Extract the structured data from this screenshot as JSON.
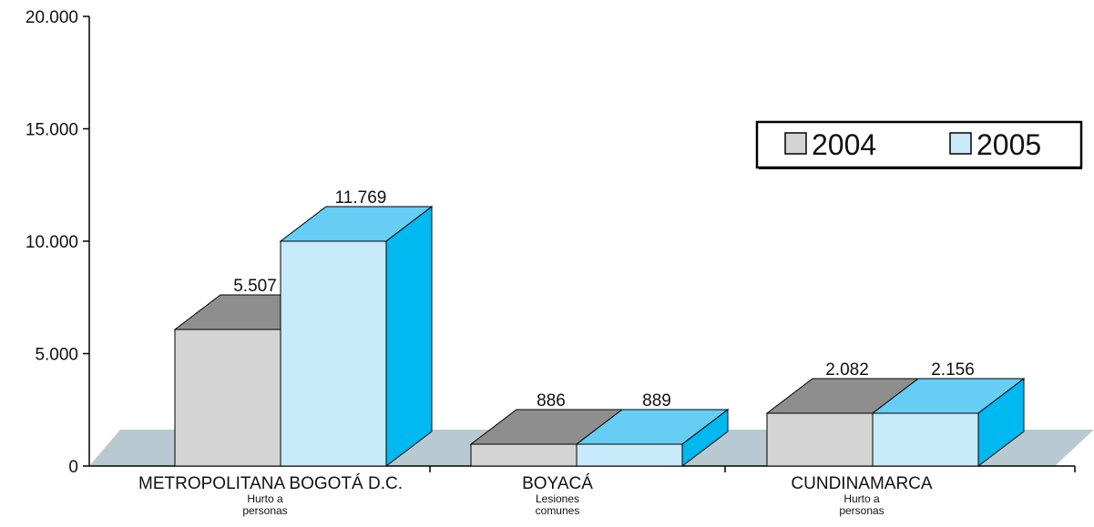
{
  "chart_data": {
    "type": "bar",
    "title": "",
    "xlabel": "",
    "ylabel": "",
    "ylim": [
      0,
      20000
    ],
    "yticks": [
      0,
      5000,
      10000,
      15000,
      20000
    ],
    "ytick_labels": [
      "0",
      "5.000",
      "10.000",
      "15.000",
      "20.000"
    ],
    "categories": [
      "METROPOLITANA BOGOTÁ D.C.",
      "BOYACÁ",
      "CUNDINAMARCA"
    ],
    "subcategories": [
      [
        "Hurto a",
        "personas"
      ],
      [
        "Lesiones",
        "comunes"
      ],
      [
        "Hurto a",
        "personas"
      ]
    ],
    "series": [
      {
        "name": "2004",
        "values": [
          5507,
          886,
          2082
        ],
        "labels": [
          "5.507",
          "886",
          "2.082"
        ]
      },
      {
        "name": "2005",
        "values": [
          11769,
          889,
          2156
        ],
        "labels": [
          "11.769",
          "889",
          "2.156"
        ]
      }
    ],
    "legend_position": "top-right",
    "grid": false
  },
  "colors": {
    "s2004_front": "#d4d4d4",
    "s2004_top": "#8e8e8e",
    "s2005_front": "#c8eafb",
    "s2005_top": "#66cdf4",
    "s2005_side": "#00b9f0",
    "floor": "#b9c9d1",
    "stroke": "#000000"
  }
}
